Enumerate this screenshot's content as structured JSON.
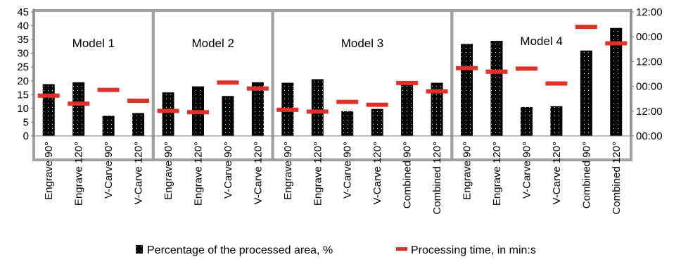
{
  "chart_data": {
    "type": "bar",
    "categories": [
      "Engrave 90°",
      "Engrave 120°",
      "V-Carve 90°",
      "V-Carve 120°",
      "Engrave 90°",
      "Engrave 120°",
      "V-Carve 90°",
      "V-Carve 120°",
      "Engrave 90°",
      "Engrave 120°",
      "V-Carve 90°",
      "V-Carve 120°",
      "Combined 90°",
      "Combined 120°",
      "Engrave 90°",
      "Engrave 120°",
      "V-Carve 90°",
      "V-Carve 120°",
      "Combined 90°",
      "Combined 120°"
    ],
    "groups": [
      {
        "label": "Model 1",
        "count": 4
      },
      {
        "label": "Model 2",
        "count": 4
      },
      {
        "label": "Model 3",
        "count": 6
      },
      {
        "label": "Model 4",
        "count": 6
      }
    ],
    "series": [
      {
        "name": "Percentage of the processed area, %",
        "type": "bar",
        "axis": "left",
        "color": "#000000",
        "values": [
          18.8,
          19.5,
          7.3,
          8.3,
          15.8,
          18.0,
          14.5,
          19.5,
          19.3,
          20.6,
          9.0,
          9.8,
          18.5,
          19.3,
          33.4,
          34.5,
          10.5,
          10.8,
          31.0,
          39.2
        ]
      },
      {
        "name": "Processing time, in min:s",
        "type": "marker",
        "axis": "right",
        "color": "#e0302a",
        "values_min": [
          780,
          625,
          891,
          681,
          484,
          460,
          1033,
          918,
          507,
          471,
          659,
          604,
          1024,
          863,
          1312,
          1244,
          1304,
          1015,
          2112,
          1793
        ]
      }
    ],
    "y_left": {
      "ylim": [
        0,
        45
      ],
      "ticks": [
        "0",
        "5",
        "10",
        "15",
        "20",
        "25",
        "30",
        "35",
        "40",
        "45"
      ]
    },
    "y_right": {
      "ylim": [
        0,
        2400
      ],
      "ticks": [
        "00:00",
        "12:00",
        "00:00",
        "12:00",
        "00:00",
        "12:00"
      ]
    },
    "legend": {
      "position": "bottom"
    },
    "grid": false
  }
}
